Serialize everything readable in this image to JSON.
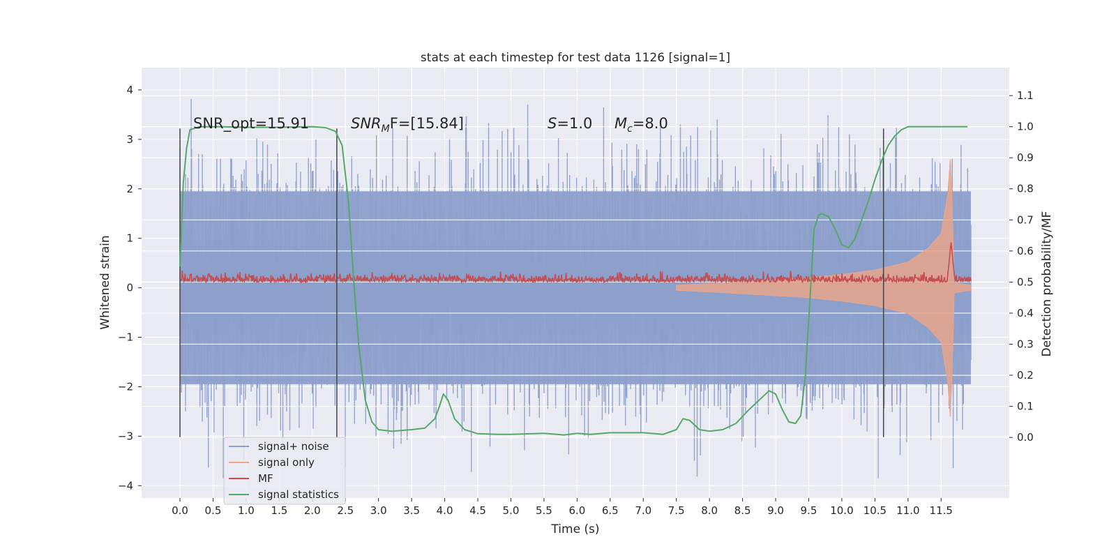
{
  "chart_data": {
    "type": "line",
    "title": "stats at each timestep for test data 1126 [signal=1]",
    "xlabel": "Time (s)",
    "ylabel": "Whitened strain",
    "ylabel_right": "Detection probability/MF",
    "xlim": [
      -0.58,
      12.53
    ],
    "ylim": [
      -4.25,
      4.45
    ],
    "ylim_right": [
      -0.195,
      1.19
    ],
    "x_ticks": [
      0.0,
      0.5,
      1.0,
      1.5,
      2.0,
      2.5,
      3.0,
      3.5,
      4.0,
      4.5,
      5.0,
      5.5,
      6.0,
      6.5,
      7.0,
      7.5,
      8.0,
      8.5,
      9.0,
      9.5,
      10.0,
      10.5,
      11.0,
      11.5
    ],
    "x_tick_labels": [
      "0.0",
      "0.5",
      "1.0",
      "1.5",
      "2.0",
      "2.5",
      "3.0",
      "3.5",
      "4.0",
      "4.5",
      "5.0",
      "5.5",
      "6.0",
      "6.5",
      "7.0",
      "7.5",
      "8.0",
      "8.5",
      "9.0",
      "9.5",
      "10.0",
      "10.5",
      "11.0",
      "11.5"
    ],
    "y_ticks": [
      -4,
      -3,
      -2,
      -1,
      0,
      1,
      2,
      3,
      4
    ],
    "y_tick_labels": [
      "−4",
      "−3",
      "−2",
      "−1",
      "0",
      "1",
      "2",
      "3",
      "4"
    ],
    "y_right_ticks": [
      0.0,
      0.1,
      0.2,
      0.3,
      0.4,
      0.5,
      0.6,
      0.7,
      0.8,
      0.9,
      1.0,
      1.1
    ],
    "y_right_tick_labels": [
      "0.0",
      "0.1",
      "0.2",
      "0.3",
      "0.4",
      "0.5",
      "0.6",
      "0.7",
      "0.8",
      "0.9",
      "1.0",
      "1.1"
    ],
    "grid": true,
    "legend_position": "lower-left",
    "annotations": {
      "snr_opt": "SNR_opt=15.91",
      "snr_mf_main": "SNR",
      "snr_mf_sub": "M",
      "snr_mf_rest": "F=[15.84]",
      "s_italic": "S",
      "s_rest": "=1.0",
      "mc_italic": "M",
      "mc_sub": "c",
      "mc_rest": "=8.0"
    },
    "vertical_lines_x": [
      0.0,
      2.37,
      10.63
    ],
    "colors": {
      "signal_noise": "#8da0cb",
      "signal_only": "#e8a58b",
      "mf": "#c44e52",
      "signal_statistics": "#55a868",
      "vline": "#444444",
      "axes_bg": "#eaeaf2",
      "grid": "#ffffff"
    },
    "series": [
      {
        "name": "signal+ noise",
        "axis": "left",
        "envelope_typical": [
          -2.1,
          2.1
        ],
        "extremes": [
          -3.85,
          4.1
        ],
        "x_range": [
          0.0,
          11.95
        ]
      },
      {
        "name": "signal only",
        "axis": "left",
        "envelope": {
          "x": [
            7.5,
            8.5,
            9.5,
            10.0,
            10.5,
            11.0,
            11.3,
            11.5,
            11.6,
            11.64,
            11.66,
            11.7,
            11.95
          ],
          "half_width": [
            0.05,
            0.12,
            0.2,
            0.27,
            0.36,
            0.52,
            0.8,
            1.1,
            1.9,
            2.6,
            2.0,
            0.1,
            0.05
          ]
        }
      },
      {
        "name": "MF",
        "axis": "right",
        "baseline": 0.5,
        "noise_amplitude": 0.02,
        "peak": {
          "x": 11.65,
          "y": 0.63
        }
      },
      {
        "name": "signal statistics",
        "axis": "right",
        "x": [
          0.0,
          0.05,
          0.1,
          0.15,
          0.3,
          0.6,
          1.0,
          1.5,
          2.0,
          2.2,
          2.35,
          2.45,
          2.55,
          2.62,
          2.7,
          2.8,
          2.9,
          3.0,
          3.2,
          3.5,
          3.7,
          3.85,
          3.92,
          3.98,
          4.05,
          4.15,
          4.3,
          4.5,
          4.8,
          5.0,
          5.5,
          5.8,
          6.0,
          6.2,
          6.5,
          7.0,
          7.3,
          7.5,
          7.6,
          7.7,
          7.85,
          8.0,
          8.2,
          8.4,
          8.6,
          8.8,
          8.9,
          9.0,
          9.1,
          9.2,
          9.3,
          9.38,
          9.45,
          9.52,
          9.58,
          9.65,
          9.7,
          9.8,
          9.9,
          10.0,
          10.1,
          10.2,
          10.3,
          10.4,
          10.5,
          10.6,
          10.7,
          10.8,
          10.9,
          11.0,
          11.2,
          11.5,
          11.9
        ],
        "y": [
          0.55,
          0.82,
          0.93,
          0.99,
          1.0,
          1.0,
          0.998,
          0.998,
          1.0,
          0.997,
          0.985,
          0.94,
          0.75,
          0.52,
          0.3,
          0.12,
          0.05,
          0.025,
          0.02,
          0.025,
          0.03,
          0.06,
          0.1,
          0.14,
          0.12,
          0.06,
          0.025,
          0.012,
          0.01,
          0.01,
          0.013,
          0.008,
          0.013,
          0.01,
          0.015,
          0.015,
          0.01,
          0.025,
          0.06,
          0.055,
          0.025,
          0.02,
          0.025,
          0.045,
          0.09,
          0.13,
          0.15,
          0.14,
          0.09,
          0.05,
          0.045,
          0.07,
          0.2,
          0.45,
          0.67,
          0.715,
          0.72,
          0.71,
          0.67,
          0.62,
          0.61,
          0.64,
          0.7,
          0.76,
          0.83,
          0.89,
          0.94,
          0.97,
          0.99,
          1.0,
          1.0,
          1.0,
          1.0
        ]
      }
    ]
  }
}
